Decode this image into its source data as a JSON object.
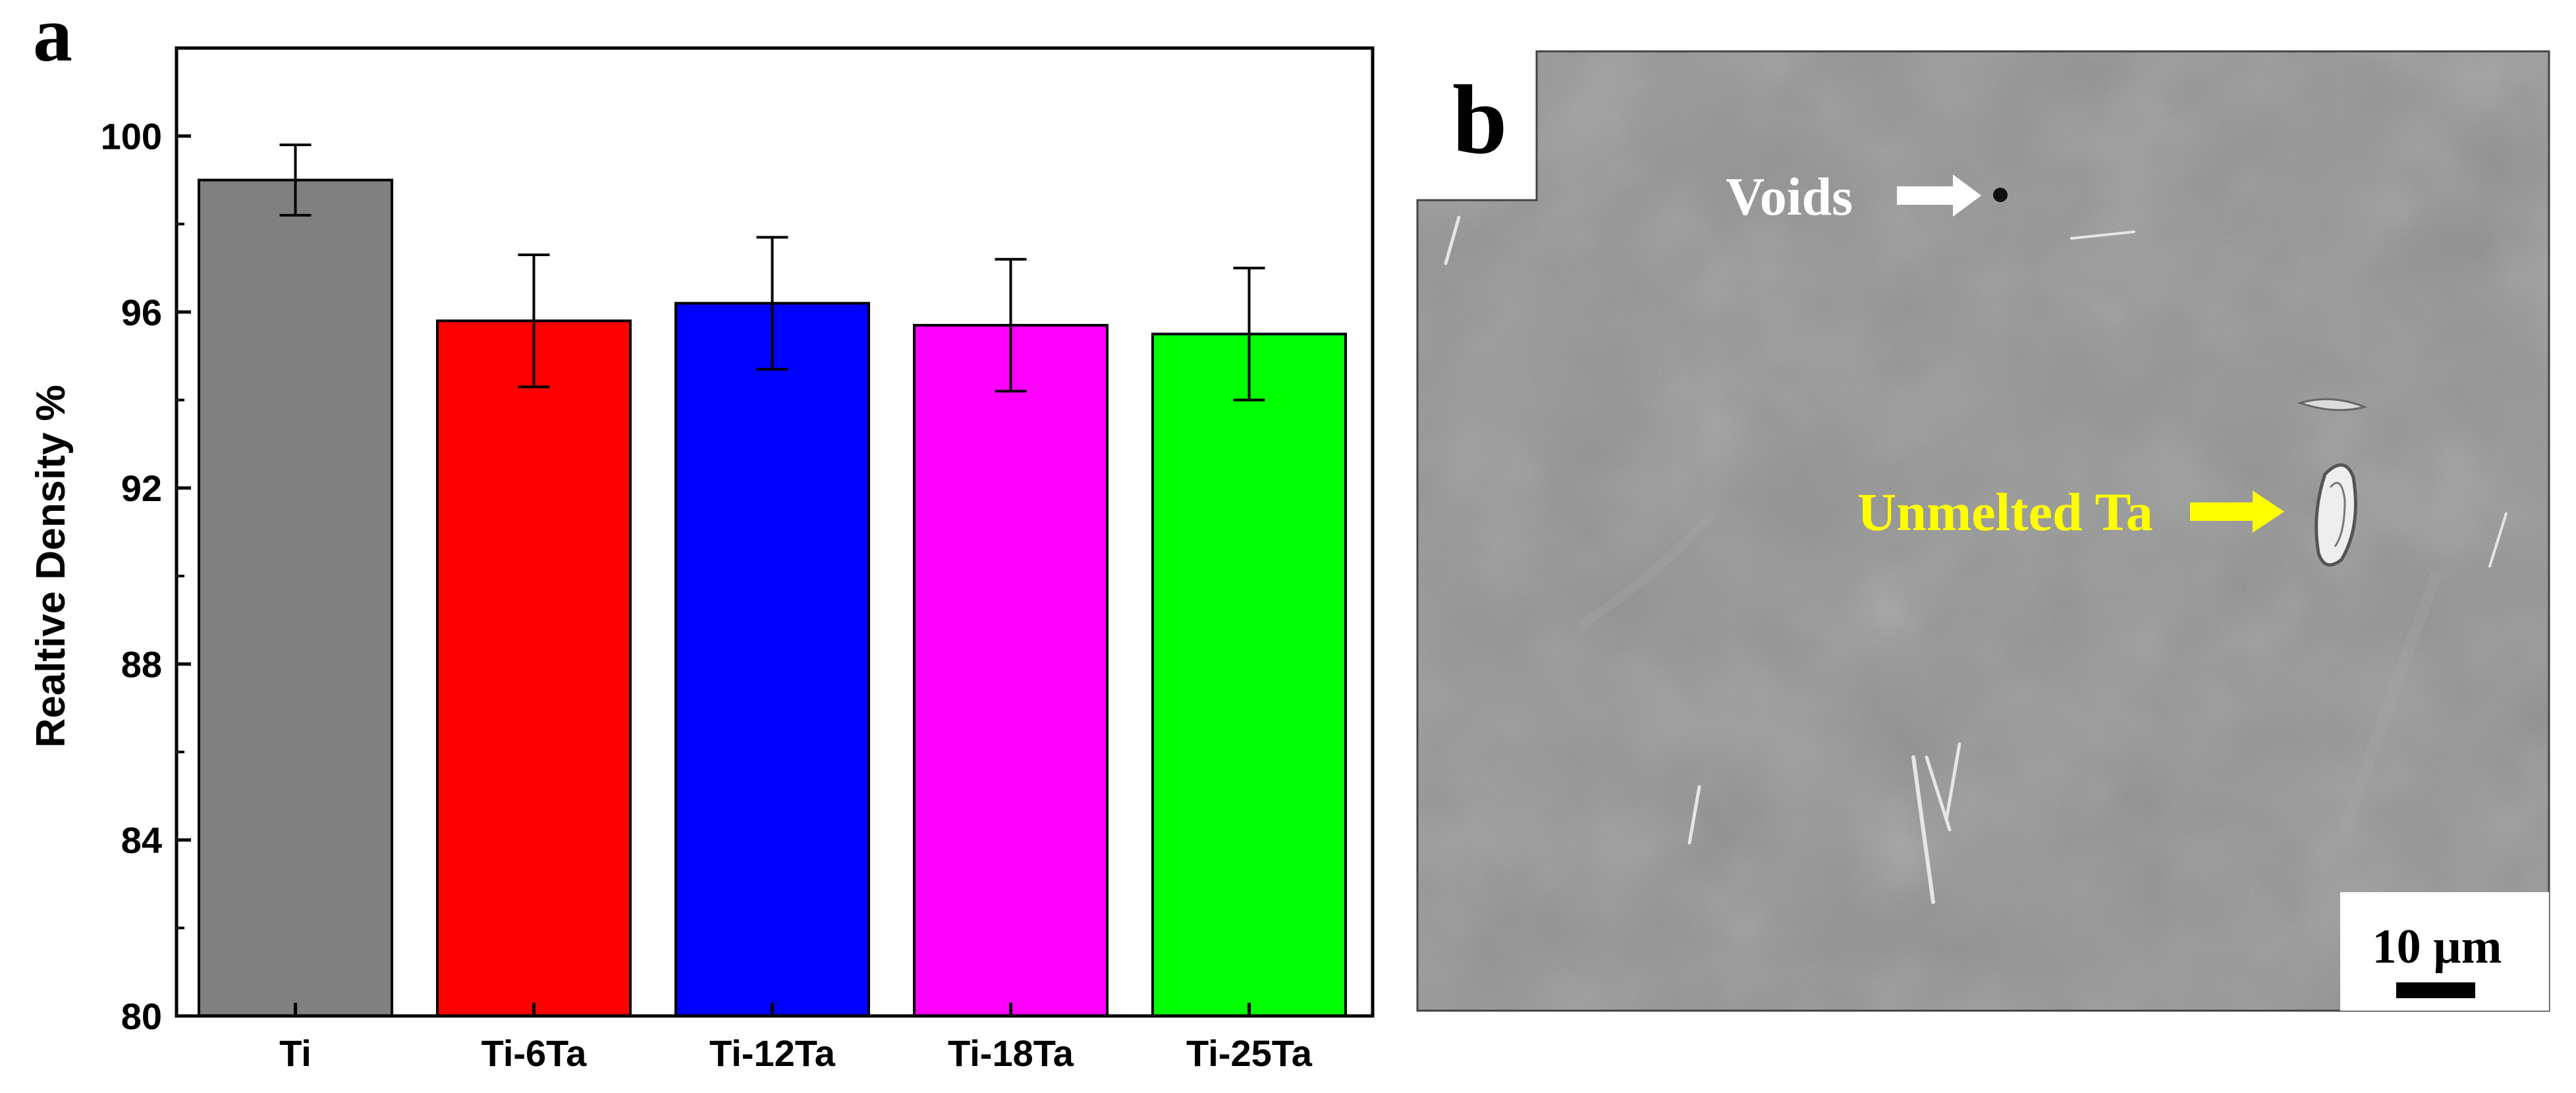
{
  "panels": {
    "a": {
      "letter": "a"
    },
    "b": {
      "letter": "b"
    }
  },
  "chart_data": {
    "type": "bar",
    "title": "",
    "xlabel": "",
    "ylabel": "Realtive Density %",
    "categories": [
      "Ti",
      "Ti-6Ta",
      "Ti-12Ta",
      "Ti-18Ta",
      "Ti-25Ta"
    ],
    "values": [
      99.0,
      95.8,
      96.2,
      95.7,
      95.5
    ],
    "errors": [
      0.8,
      1.5,
      1.5,
      1.5,
      1.5
    ],
    "colors": [
      "#808080",
      "#ff0000",
      "#0000ff",
      "#ff00ff",
      "#00ff00"
    ],
    "ylim": [
      80,
      102
    ],
    "yticks": [
      80,
      84,
      88,
      92,
      96,
      100
    ],
    "grid": false,
    "legend": "none"
  },
  "micrograph": {
    "annotations": {
      "voids": "Voids",
      "unmelted": "Unmelted Ta"
    },
    "scale_bar": "10 µm",
    "colors": {
      "voids_text": "#ffffff",
      "unmelted_text": "#ffff00",
      "background": "#858585"
    }
  }
}
